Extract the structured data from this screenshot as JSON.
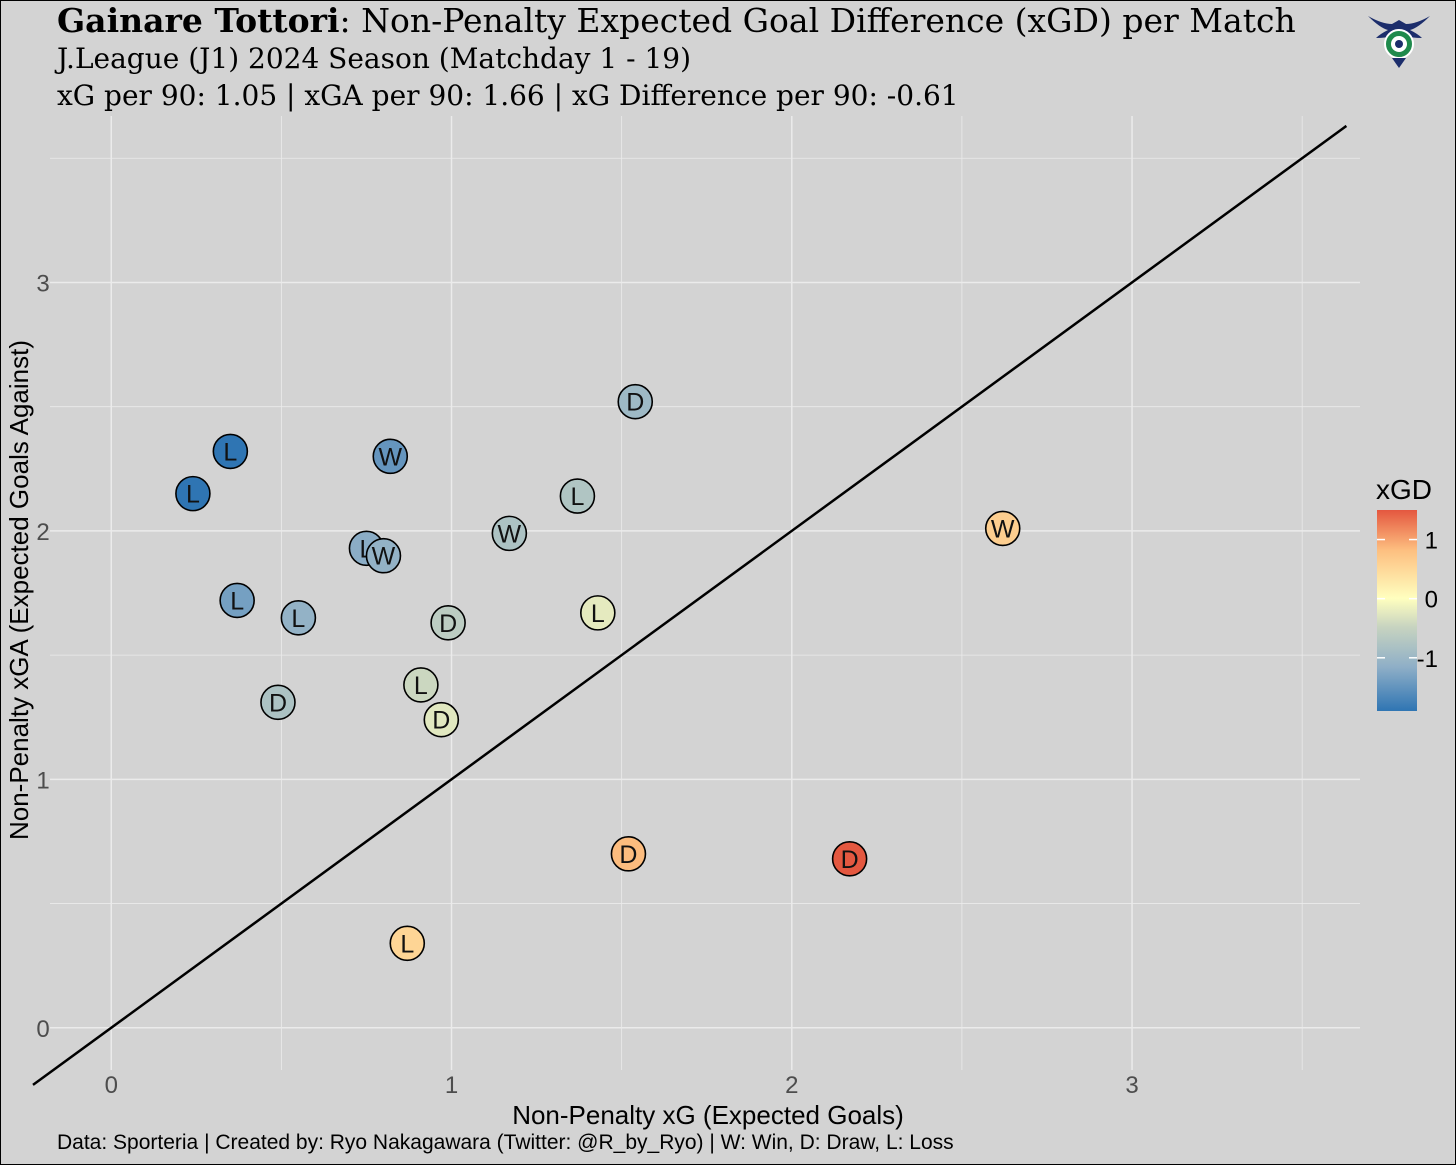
{
  "title": {
    "team": "Gainare Tottori",
    "rest": ": Non-Penalty Expected Goal Difference (xGD) per Match",
    "subtitle": "J.League (J1) 2024 Season (Matchday 1 - 19)",
    "stats": "xG per 90: 1.05 | xGA per 90: 1.66 | xG Difference per 90: -0.61"
  },
  "caption": "Data: Sporteria | Created by: Ryo Nakagawara (Twitter: @R_by_Ryo) | W: Win, D: Draw, L: Loss",
  "colors": {
    "panel": "#d3d3d3",
    "grid": "#ebebeb",
    "diagonal": "#000000",
    "scale": [
      "#2f75b3",
      "#8fafc7",
      "#c8d4c0",
      "#ffffbf",
      "#fdbf80",
      "#e4573f"
    ]
  },
  "chart_data": {
    "type": "scatter",
    "xlabel": "Non-Penalty xG (Expected Goals)",
    "ylabel": "Non-Penalty xGA (Expected Goals Against)",
    "xlim": [
      -0.18,
      3.67
    ],
    "ylim": [
      -0.17,
      3.67
    ],
    "x_ticks": [
      0,
      1,
      2,
      3
    ],
    "y_ticks": [
      0,
      1,
      2,
      3
    ],
    "grid": true,
    "reference_line": "y = x",
    "legend": {
      "title": "xGD",
      "position": "right",
      "ticks": [
        1,
        0,
        -1
      ],
      "tick_labels": [
        "1",
        "0",
        "-1"
      ],
      "range": [
        -1.9,
        1.5
      ]
    },
    "points": [
      {
        "x": 0.35,
        "y": 2.32,
        "result": "L"
      },
      {
        "x": 0.24,
        "y": 2.15,
        "result": "L"
      },
      {
        "x": 0.82,
        "y": 2.3,
        "result": "W"
      },
      {
        "x": 1.54,
        "y": 2.52,
        "result": "D"
      },
      {
        "x": 1.37,
        "y": 2.14,
        "result": "L"
      },
      {
        "x": 1.17,
        "y": 1.99,
        "result": "W"
      },
      {
        "x": 0.75,
        "y": 1.93,
        "result": "L"
      },
      {
        "x": 0.8,
        "y": 1.9,
        "result": "W"
      },
      {
        "x": 0.37,
        "y": 1.72,
        "result": "L"
      },
      {
        "x": 0.55,
        "y": 1.65,
        "result": "L"
      },
      {
        "x": 0.99,
        "y": 1.63,
        "result": "D"
      },
      {
        "x": 1.43,
        "y": 1.67,
        "result": "L"
      },
      {
        "x": 0.49,
        "y": 1.31,
        "result": "D"
      },
      {
        "x": 0.91,
        "y": 1.38,
        "result": "L"
      },
      {
        "x": 0.97,
        "y": 1.24,
        "result": "D"
      },
      {
        "x": 2.62,
        "y": 2.01,
        "result": "W"
      },
      {
        "x": 1.52,
        "y": 0.7,
        "result": "D"
      },
      {
        "x": 2.17,
        "y": 0.68,
        "result": "D"
      },
      {
        "x": 0.87,
        "y": 0.34,
        "result": "L"
      }
    ]
  }
}
